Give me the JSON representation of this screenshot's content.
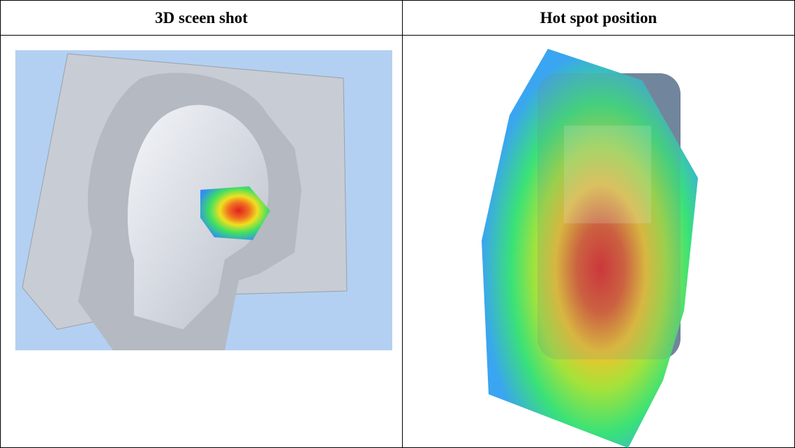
{
  "table": {
    "header": [
      "3D sceen shot",
      "Hot spot position"
    ]
  }
}
